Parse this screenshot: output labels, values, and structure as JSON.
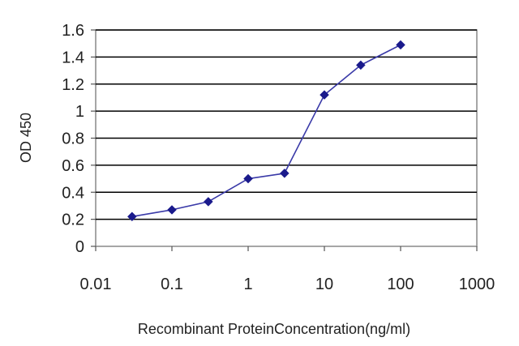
{
  "chart_data": {
    "type": "line",
    "title": "",
    "xlabel": "Recombinant ProteinConcentration(ng/ml)",
    "ylabel": "OD 450",
    "x_scale": "log",
    "xlim": [
      0.01,
      1000
    ],
    "ylim": [
      0,
      1.6
    ],
    "x_ticks": [
      "0.01",
      "0.1",
      "1",
      "10",
      "100",
      "1000"
    ],
    "y_ticks": [
      "0",
      "0.2",
      "0.4",
      "0.6",
      "0.8",
      "1",
      "1.2",
      "1.4",
      "1.6"
    ],
    "grid": "horizontal",
    "legend": "none",
    "series": [
      {
        "x": [
          0.03,
          0.1,
          0.3,
          1,
          3,
          10,
          30,
          100
        ],
        "y": [
          0.22,
          0.27,
          0.33,
          0.5,
          0.54,
          1.12,
          1.34,
          1.49
        ]
      }
    ],
    "colors": {
      "line": "#3a3aa8",
      "marker": "#1a1a8c",
      "grid": "#000000",
      "plot_border": "#888888"
    }
  }
}
